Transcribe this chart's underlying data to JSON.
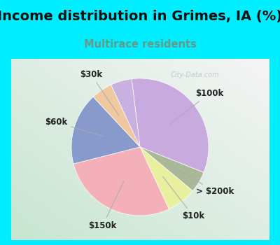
{
  "title": "Income distribution in Grimes, IA (%)",
  "subtitle": "Multirace residents",
  "title_color": "#111111",
  "subtitle_color": "#669988",
  "background_outer": "#00eeff",
  "slices": [
    {
      "label": "$100k",
      "value": 33,
      "color": "#c8aade"
    },
    {
      "label": "> $200k",
      "value": 5,
      "color": "#aab898"
    },
    {
      "label": "$10k",
      "value": 7,
      "color": "#e8f0a0"
    },
    {
      "label": "$150k",
      "value": 28,
      "color": "#f4b0b8"
    },
    {
      "label": "$60k",
      "value": 17,
      "color": "#8899cc"
    },
    {
      "label": "$30k",
      "value": 5,
      "color": "#f0c8a0"
    },
    {
      "label": "",
      "value": 5,
      "color": "#c8b0e0"
    }
  ],
  "watermark": "City-Data.com",
  "label_fontsize": 8.5,
  "title_fontsize": 14,
  "subtitle_fontsize": 10.5,
  "startangle": 97
}
